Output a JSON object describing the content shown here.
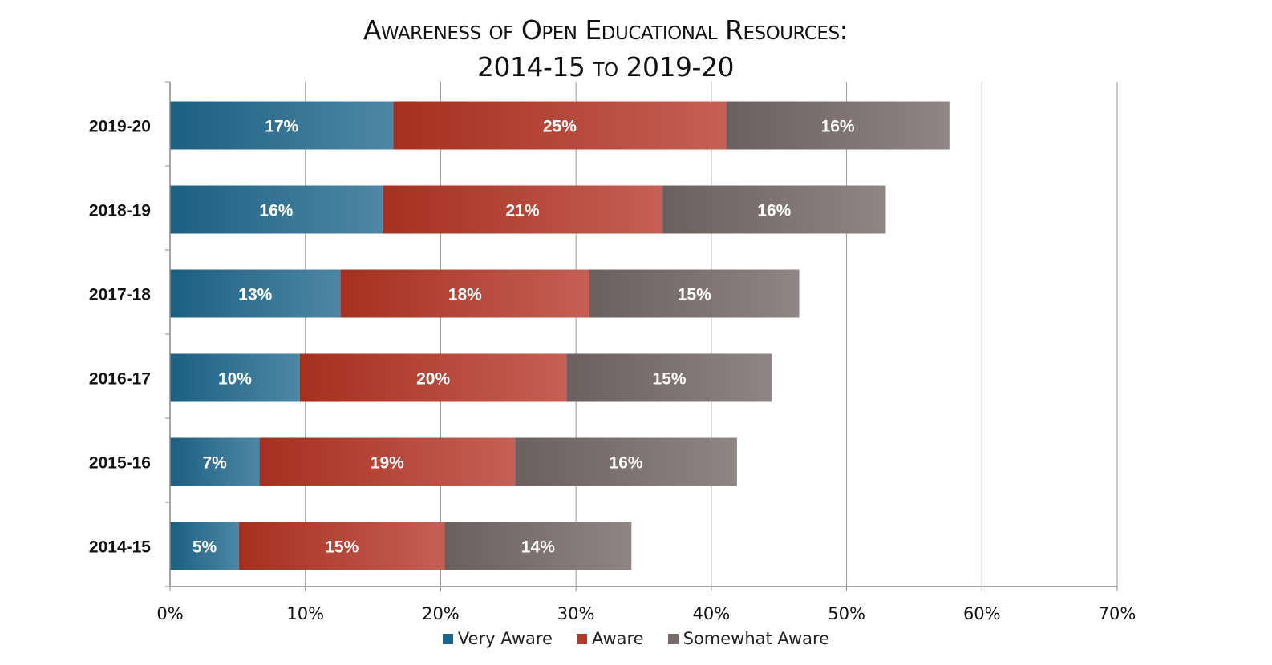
{
  "chart_data": {
    "type": "bar",
    "orientation": "horizontal",
    "stacked": true,
    "title": "Awareness of Open Educational Resources:",
    "subtitle": "2014-15 to 2019-20",
    "categories": [
      "2019-20",
      "2018-19",
      "2017-18",
      "2016-17",
      "2015-16",
      "2014-15"
    ],
    "series": [
      {
        "name": "Very Aware",
        "color": "#1f6488",
        "values": [
          16.5,
          15.7,
          12.6,
          9.6,
          6.6,
          5.1
        ],
        "labels": [
          "17%",
          "16%",
          "13%",
          "10%",
          "7%",
          "5%"
        ]
      },
      {
        "name": "Aware",
        "color": "#b03a2c",
        "values": [
          24.6,
          20.7,
          18.4,
          19.7,
          18.9,
          15.2
        ],
        "labels": [
          "25%",
          "21%",
          "18%",
          "20%",
          "19%",
          "15%"
        ]
      },
      {
        "name": "Somewhat Aware",
        "color": "#776b6b",
        "values": [
          16.5,
          16.5,
          15.5,
          15.2,
          16.4,
          13.8
        ],
        "labels": [
          "16%",
          "16%",
          "15%",
          "15%",
          "16%",
          "14%"
        ]
      }
    ],
    "xlim": [
      0,
      70
    ],
    "xticks": [
      "0%",
      "10%",
      "20%",
      "30%",
      "40%",
      "50%",
      "60%",
      "70%"
    ],
    "grid": true,
    "legend_position": "bottom"
  }
}
